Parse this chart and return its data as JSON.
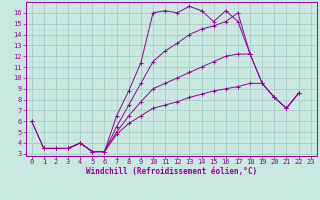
{
  "bg_color": "#c8e8e0",
  "line_color": "#990099",
  "grid_color": "#a0c8c0",
  "xlabel": "Windchill (Refroidissement éolien,°C)",
  "xlim": [
    -0.5,
    23.5
  ],
  "ylim": [
    2.8,
    17.0
  ],
  "xticks": [
    0,
    1,
    2,
    3,
    4,
    5,
    6,
    7,
    8,
    9,
    10,
    11,
    12,
    13,
    14,
    15,
    16,
    17,
    18,
    19,
    20,
    21,
    22,
    23
  ],
  "yticks": [
    3,
    4,
    5,
    6,
    7,
    8,
    9,
    10,
    11,
    12,
    13,
    14,
    15,
    16
  ],
  "lines": [
    [
      [
        0,
        6.0
      ],
      [
        1,
        3.5
      ],
      [
        2,
        3.5
      ],
      [
        3,
        3.5
      ],
      [
        4,
        4.0
      ],
      [
        5,
        3.2
      ],
      [
        6,
        3.2
      ],
      [
        7,
        6.5
      ],
      [
        8,
        8.8
      ],
      [
        9,
        11.4
      ],
      [
        10,
        16.0
      ],
      [
        11,
        16.2
      ],
      [
        12,
        16.0
      ],
      [
        13,
        16.6
      ],
      [
        14,
        16.2
      ],
      [
        15,
        15.2
      ],
      [
        16,
        16.2
      ],
      [
        17,
        15.2
      ],
      [
        18,
        12.2
      ]
    ],
    [
      [
        1,
        3.5
      ],
      [
        2,
        3.5
      ],
      [
        3,
        3.5
      ],
      [
        4,
        4.0
      ],
      [
        5,
        3.2
      ],
      [
        6,
        3.2
      ],
      [
        7,
        5.5
      ],
      [
        8,
        7.5
      ],
      [
        9,
        9.5
      ],
      [
        10,
        11.5
      ],
      [
        11,
        12.5
      ],
      [
        12,
        13.2
      ],
      [
        13,
        14.0
      ],
      [
        14,
        14.5
      ],
      [
        15,
        14.8
      ],
      [
        16,
        15.2
      ],
      [
        17,
        16.0
      ],
      [
        18,
        12.2
      ],
      [
        19,
        9.5
      ],
      [
        20,
        8.2
      ],
      [
        21,
        7.2
      ],
      [
        22,
        8.6
      ]
    ],
    [
      [
        1,
        3.5
      ],
      [
        2,
        3.5
      ],
      [
        3,
        3.5
      ],
      [
        4,
        4.0
      ],
      [
        5,
        3.2
      ],
      [
        6,
        3.2
      ],
      [
        7,
        5.0
      ],
      [
        8,
        6.5
      ],
      [
        9,
        7.8
      ],
      [
        10,
        9.0
      ],
      [
        11,
        9.5
      ],
      [
        12,
        10.0
      ],
      [
        13,
        10.5
      ],
      [
        14,
        11.0
      ],
      [
        15,
        11.5
      ],
      [
        16,
        12.0
      ],
      [
        17,
        12.2
      ],
      [
        18,
        12.2
      ],
      [
        19,
        9.5
      ],
      [
        20,
        8.2
      ],
      [
        21,
        7.2
      ],
      [
        22,
        8.6
      ]
    ],
    [
      [
        0,
        6.0
      ],
      [
        1,
        3.5
      ],
      [
        2,
        3.5
      ],
      [
        3,
        3.5
      ],
      [
        4,
        4.0
      ],
      [
        5,
        3.2
      ],
      [
        6,
        3.2
      ],
      [
        7,
        4.8
      ],
      [
        8,
        5.8
      ],
      [
        9,
        6.5
      ],
      [
        10,
        7.2
      ],
      [
        11,
        7.5
      ],
      [
        12,
        7.8
      ],
      [
        13,
        8.2
      ],
      [
        14,
        8.5
      ],
      [
        15,
        8.8
      ],
      [
        16,
        9.0
      ],
      [
        17,
        9.2
      ],
      [
        18,
        9.5
      ],
      [
        19,
        9.5
      ],
      [
        20,
        8.2
      ],
      [
        21,
        7.2
      ],
      [
        22,
        8.6
      ]
    ]
  ]
}
